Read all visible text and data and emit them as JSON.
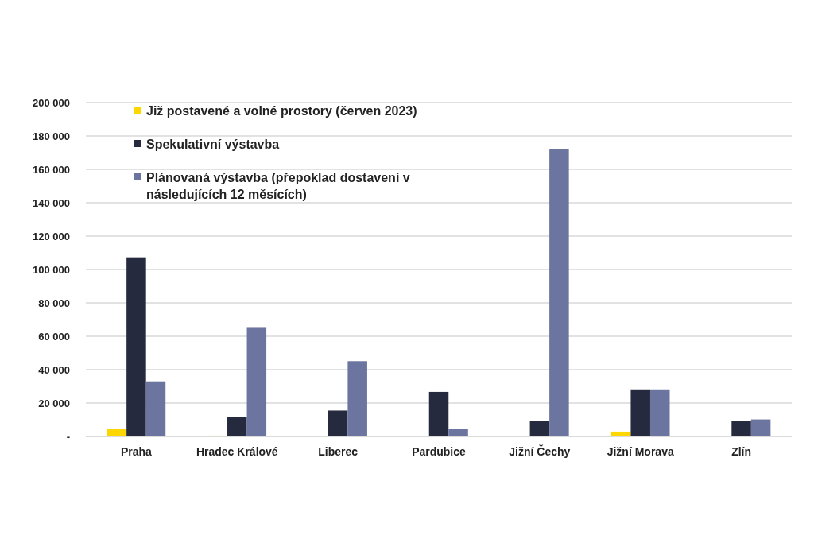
{
  "chart_data": {
    "type": "bar",
    "categories": [
      "Praha",
      "Hradec Králové",
      "Liberec",
      "Pardubice",
      "Jižní Čechy",
      "Jižní Morava",
      "Zlín"
    ],
    "series": [
      {
        "name": "Již postavené a volné prostory (červen 2023)",
        "color": "#ffd700",
        "values": [
          4400,
          500,
          null,
          null,
          null,
          2900,
          null
        ]
      },
      {
        "name": "Spekulativní výstavba",
        "color": "#262a3e",
        "values": [
          107300,
          11700,
          15500,
          26700,
          9200,
          28200,
          9200
        ]
      },
      {
        "name": "Plánovaná výstavba (přepoklad dostavení v následujících 12 měsících)",
        "color": "#6b759f",
        "values": [
          33000,
          65500,
          45100,
          4400,
          172300,
          28200,
          10200
        ]
      }
    ],
    "ylim": [
      0,
      200000
    ],
    "yticks": [
      {
        "value": 0,
        "label": "-"
      },
      {
        "value": 20000,
        "label": "20 000"
      },
      {
        "value": 40000,
        "label": "40 000"
      },
      {
        "value": 60000,
        "label": "60 000"
      },
      {
        "value": 80000,
        "label": "80 000"
      },
      {
        "value": 100000,
        "label": "100 000"
      },
      {
        "value": 120000,
        "label": "120 000"
      },
      {
        "value": 140000,
        "label": "140 000"
      },
      {
        "value": 160000,
        "label": "160 000"
      },
      {
        "value": 180000,
        "label": "180 000"
      },
      {
        "value": 200000,
        "label": "200 000"
      }
    ],
    "grid": "y",
    "legend": "top left"
  }
}
